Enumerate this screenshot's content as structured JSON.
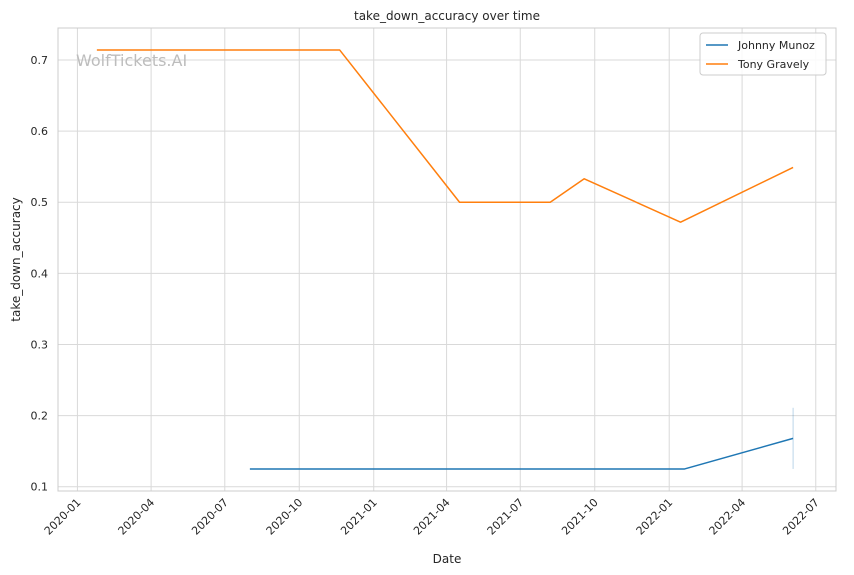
{
  "chart_data": {
    "type": "line",
    "title": "take_down_accuracy over time",
    "xlabel": "Date",
    "ylabel": "take_down_accuracy",
    "watermark": "WolfTickets.AI",
    "x_axis": "date",
    "xlim": [
      "2019-12-08",
      "2022-07-26"
    ],
    "ylim": [
      0.094,
      0.745
    ],
    "x_ticks": [
      "2020-01",
      "2020-04",
      "2020-07",
      "2020-10",
      "2021-01",
      "2021-04",
      "2021-07",
      "2021-10",
      "2022-01",
      "2022-04",
      "2022-07"
    ],
    "y_ticks": [
      "0.1",
      "0.2",
      "0.3",
      "0.4",
      "0.5",
      "0.6",
      "0.7"
    ],
    "grid": true,
    "legend_position": "top-right",
    "series": [
      {
        "name": "Johnny Munoz",
        "color": "#1f77b4",
        "points": [
          {
            "x": "2020-08-01",
            "y": 0.125
          },
          {
            "x": "2022-01-20",
            "y": 0.125
          },
          {
            "x": "2022-06-03",
            "y": 0.168
          }
        ],
        "error_bar": {
          "x": "2022-06-03",
          "low": 0.125,
          "high": 0.211
        }
      },
      {
        "name": "Tony Gravely",
        "color": "#ff7f0e",
        "points": [
          {
            "x": "2020-01-25",
            "y": 0.714
          },
          {
            "x": "2020-11-20",
            "y": 0.714
          },
          {
            "x": "2021-04-17",
            "y": 0.5
          },
          {
            "x": "2021-08-07",
            "y": 0.5
          },
          {
            "x": "2021-09-18",
            "y": 0.533
          },
          {
            "x": "2022-01-15",
            "y": 0.472
          },
          {
            "x": "2022-06-03",
            "y": 0.549
          }
        ]
      }
    ]
  }
}
